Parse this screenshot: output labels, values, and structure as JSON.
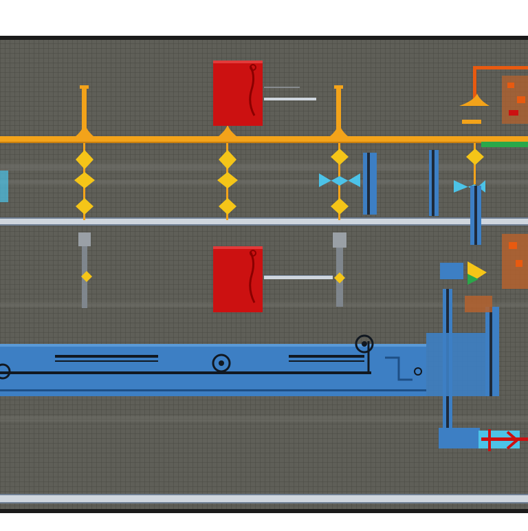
{
  "scene": {
    "kind": "abstract schematic illustration",
    "text_labels": []
  },
  "palette": {
    "page": "#ffffff",
    "frame": "#1a1a1a",
    "grid_bg": "#5f5f58",
    "grid_line": "#4a4a45",
    "rail": "#f3a31a",
    "rail_dark": "#c9800f",
    "bus": "#cfd6de",
    "bus_edge": "#6f7f93",
    "blue": "#3d7fc4",
    "blue_dark": "#1e4f86",
    "red": "#cc1111",
    "red_dark": "#8a0000",
    "orange": "#e85a10",
    "green": "#2aa84a",
    "cyan": "#4cc3e8",
    "yellow": "#f5c518",
    "grey_component": "#9aa0a6",
    "rust": "#b4622e"
  },
  "components": {
    "red_modules": 2,
    "orange_taps": 4,
    "blue_pipes": 1,
    "bus_bars": 2
  }
}
